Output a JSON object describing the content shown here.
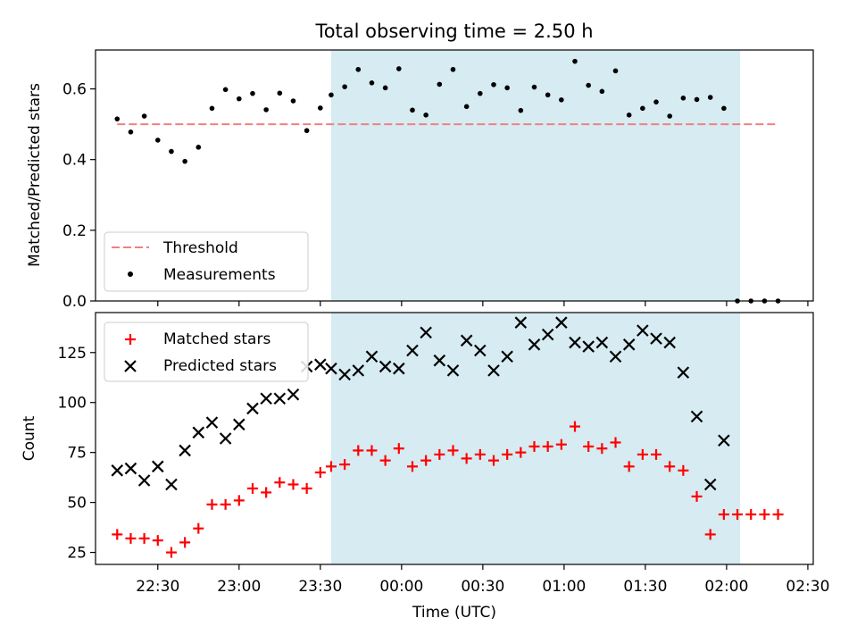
{
  "chart_data": {
    "type": "scatter",
    "title": "Total observing time = 2.50 h",
    "xlabel": "Time (UTC)",
    "x_ticks": [
      "22:30",
      "23:00",
      "23:30",
      "00:00",
      "00:30",
      "01:00",
      "01:30",
      "02:00",
      "02:30"
    ],
    "x_tick_minutes": [
      -90,
      -60,
      -30,
      0,
      30,
      60,
      90,
      120,
      150
    ],
    "x_range_minutes": [
      -113,
      152
    ],
    "x_units": "minutes since 00:00 UTC",
    "shaded_interval_minutes": [
      -26,
      125
    ],
    "shaded_color": "#add8e6",
    "times_minutes": [
      -105,
      -100,
      -95,
      -90,
      -85,
      -80,
      -75,
      -70,
      -65,
      -60,
      -55,
      -50,
      -45,
      -40,
      -35,
      -30,
      -26,
      -21,
      -16,
      -11,
      -6,
      -1,
      4,
      9,
      14,
      19,
      24,
      29,
      34,
      39,
      44,
      49,
      54,
      59,
      64,
      69,
      74,
      79,
      84,
      89,
      94,
      99,
      104,
      109,
      114,
      119,
      124,
      129,
      134,
      139
    ],
    "top_panel": {
      "ylabel": "Matched/Predicted stars",
      "ylim": [
        0,
        0.71
      ],
      "y_ticks": [
        "0.0",
        "0.2",
        "0.4",
        "0.6"
      ],
      "y_tick_values": [
        0,
        0.2,
        0.4,
        0.6
      ],
      "legend_position": "lower-left",
      "series": [
        {
          "name": "Threshold",
          "kind": "dashed-line",
          "color": "#f08080",
          "x_minutes": [
            -105,
            139
          ],
          "values": [
            0.5,
            0.5
          ]
        },
        {
          "name": "Measurements",
          "kind": "dot",
          "color": "#000000",
          "values": [
            0.515,
            0.478,
            0.523,
            0.455,
            0.423,
            0.395,
            0.435,
            0.545,
            0.598,
            0.572,
            0.587,
            0.541,
            0.588,
            0.566,
            0.482,
            0.546,
            0.583,
            0.606,
            0.655,
            0.617,
            0.603,
            0.657,
            0.54,
            0.526,
            0.613,
            0.655,
            0.55,
            0.587,
            0.612,
            0.603,
            0.539,
            0.605,
            0.583,
            0.569,
            0.678,
            0.61,
            0.593,
            0.651,
            0.526,
            0.545,
            0.563,
            0.523,
            0.574,
            0.57,
            0.576,
            0.545,
            0.0,
            0.0,
            0.0,
            0.0
          ]
        }
      ]
    },
    "bottom_panel": {
      "ylabel": "Count",
      "ylim": [
        19,
        145
      ],
      "y_ticks": [
        "25",
        "50",
        "75",
        "100",
        "125"
      ],
      "y_tick_values": [
        25,
        50,
        75,
        100,
        125
      ],
      "legend_position": "upper-left",
      "series": [
        {
          "name": "Matched stars",
          "kind": "plus",
          "color": "#ff0000",
          "values": [
            34,
            32,
            32,
            31,
            25,
            30,
            37,
            49,
            49,
            51,
            57,
            55,
            60,
            59,
            57,
            65,
            68,
            69,
            76,
            76,
            71,
            77,
            68,
            71,
            74,
            76,
            72,
            74,
            71,
            74,
            75,
            78,
            78,
            79,
            88,
            78,
            77,
            80,
            68,
            74,
            74,
            68,
            66,
            53,
            34,
            44,
            44,
            44,
            44,
            44
          ]
        },
        {
          "name": "Predicted stars",
          "kind": "x",
          "color": "#000000",
          "values": [
            66,
            67,
            61,
            68,
            59,
            76,
            85,
            90,
            82,
            89,
            97,
            102,
            102,
            104,
            118,
            119,
            117,
            114,
            116,
            123,
            118,
            117,
            126,
            135,
            121,
            116,
            131,
            126,
            116,
            123,
            140,
            129,
            134,
            140,
            130,
            128,
            130,
            123,
            129,
            136,
            132,
            130,
            115,
            93,
            59,
            81,
            null,
            null,
            null,
            null
          ]
        }
      ]
    }
  }
}
